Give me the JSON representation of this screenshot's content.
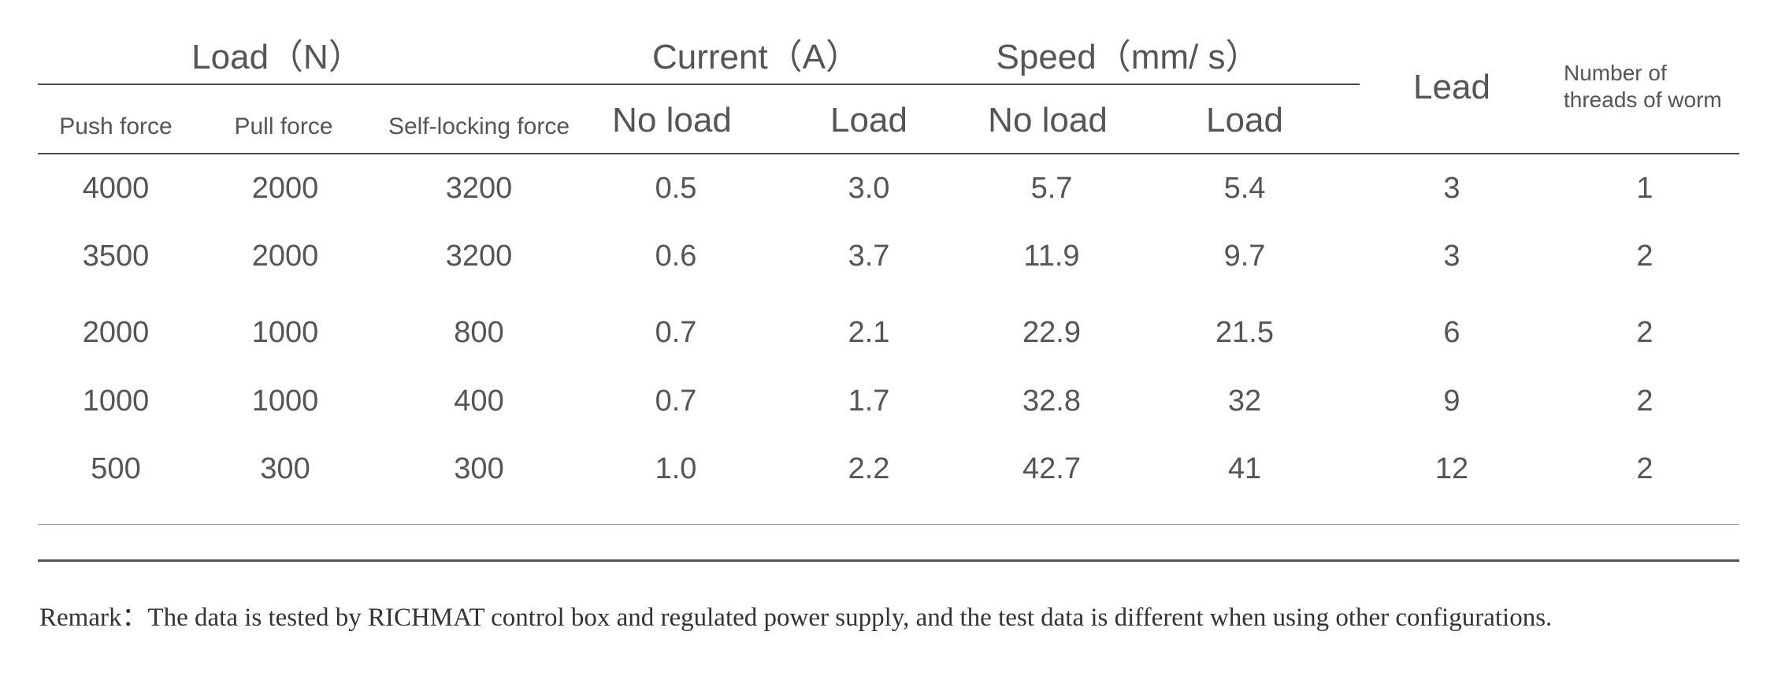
{
  "table": {
    "groups": {
      "load": "Load（N）",
      "current": "Current（A）",
      "speed": "Speed（mm/ s）"
    },
    "columns": {
      "push_force": "Push force",
      "pull_force": "Pull force",
      "self_locking_force": "Self-locking force",
      "current_no_load": "No load",
      "current_load": "Load",
      "speed_no_load": "No load",
      "speed_load": "Load",
      "lead": "Lead",
      "threads_line1": "Number of",
      "threads_line2": "threads of worm"
    },
    "rows": [
      [
        "4000",
        "2000",
        "3200",
        "0.5",
        "3.0",
        "5.7",
        "5.4",
        "3",
        "1"
      ],
      [
        "3500",
        "2000",
        "3200",
        "0.6",
        "3.7",
        "11.9",
        "9.7",
        "3",
        "2"
      ],
      [
        "2000",
        "1000",
        "800",
        "0.7",
        "2.1",
        "22.9",
        "21.5",
        "6",
        "2"
      ],
      [
        "1000",
        "1000",
        "400",
        "0.7",
        "1.7",
        "32.8",
        "32",
        "9",
        "2"
      ],
      [
        "500",
        "300",
        "300",
        "1.0",
        "2.2",
        "42.7",
        "41",
        "12",
        "2"
      ]
    ]
  },
  "remark": "Remark：The data is tested by RICHMAT control box and regulated power supply, and the test data is different when using other configurations."
}
